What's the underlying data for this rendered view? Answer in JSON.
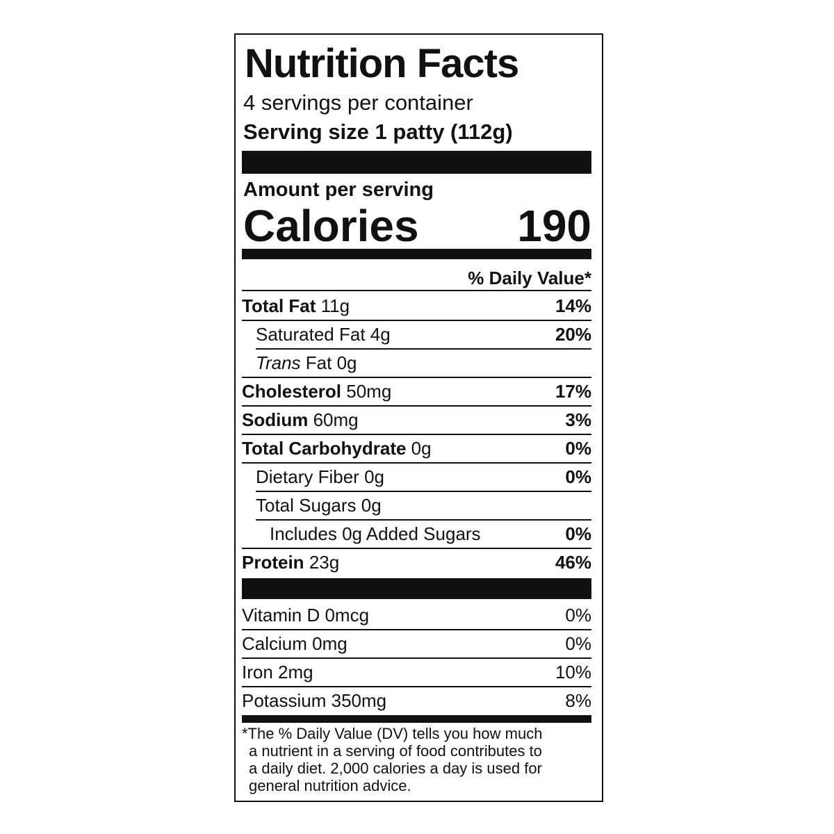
{
  "label": {
    "title": "Nutrition Facts",
    "servings": "4 servings per container",
    "serving_size": "Serving size 1 patty (112g)",
    "amount_per_serving": "Amount per serving",
    "calories_label": "Calories",
    "calories": "190",
    "dv_header": "% Daily Value*",
    "nutrients": [
      {
        "name": "Total Fat",
        "amount": "11g",
        "dv": "14%",
        "bold": true,
        "indent": 0
      },
      {
        "name": "Saturated Fat",
        "amount": "4g",
        "dv": "20%",
        "bold": false,
        "indent": 1
      },
      {
        "name_italic": "Trans",
        "name": "Fat",
        "amount": "0g",
        "bold": false,
        "indent": 1
      },
      {
        "name": "Cholesterol",
        "amount": "50mg",
        "dv": "17%",
        "bold": true,
        "indent": 0
      },
      {
        "name": "Sodium",
        "amount": "60mg",
        "dv": "3%",
        "bold": true,
        "indent": 0
      },
      {
        "name": "Total Carbohydrate",
        "amount": "0g",
        "dv": "0%",
        "bold": true,
        "indent": 0
      },
      {
        "name": "Dietary Fiber",
        "amount": "0g",
        "dv": "0%",
        "bold": false,
        "indent": 1
      },
      {
        "name": "Total Sugars",
        "amount": "0g",
        "bold": false,
        "indent": 1
      },
      {
        "name": "Includes 0g Added Sugars",
        "dv": "0%",
        "bold": false,
        "indent": 2
      },
      {
        "name": "Protein",
        "amount": "23g",
        "dv": "46%",
        "bold": true,
        "indent": 0
      }
    ],
    "micronutrients": [
      {
        "name": "Vitamin D",
        "amount": "0mcg",
        "dv": "0%"
      },
      {
        "name": "Calcium",
        "amount": "0mg",
        "dv": "0%"
      },
      {
        "name": "Iron",
        "amount": "2mg",
        "dv": "10%"
      },
      {
        "name": "Potassium",
        "amount": "350mg",
        "dv": "8%"
      }
    ],
    "footnote": [
      "*The % Daily Value (DV) tells you how much",
      "a nutrient in a serving of food contributes to",
      "a daily diet. 2,000 calories a day is used for",
      "general nutrition advice."
    ]
  }
}
